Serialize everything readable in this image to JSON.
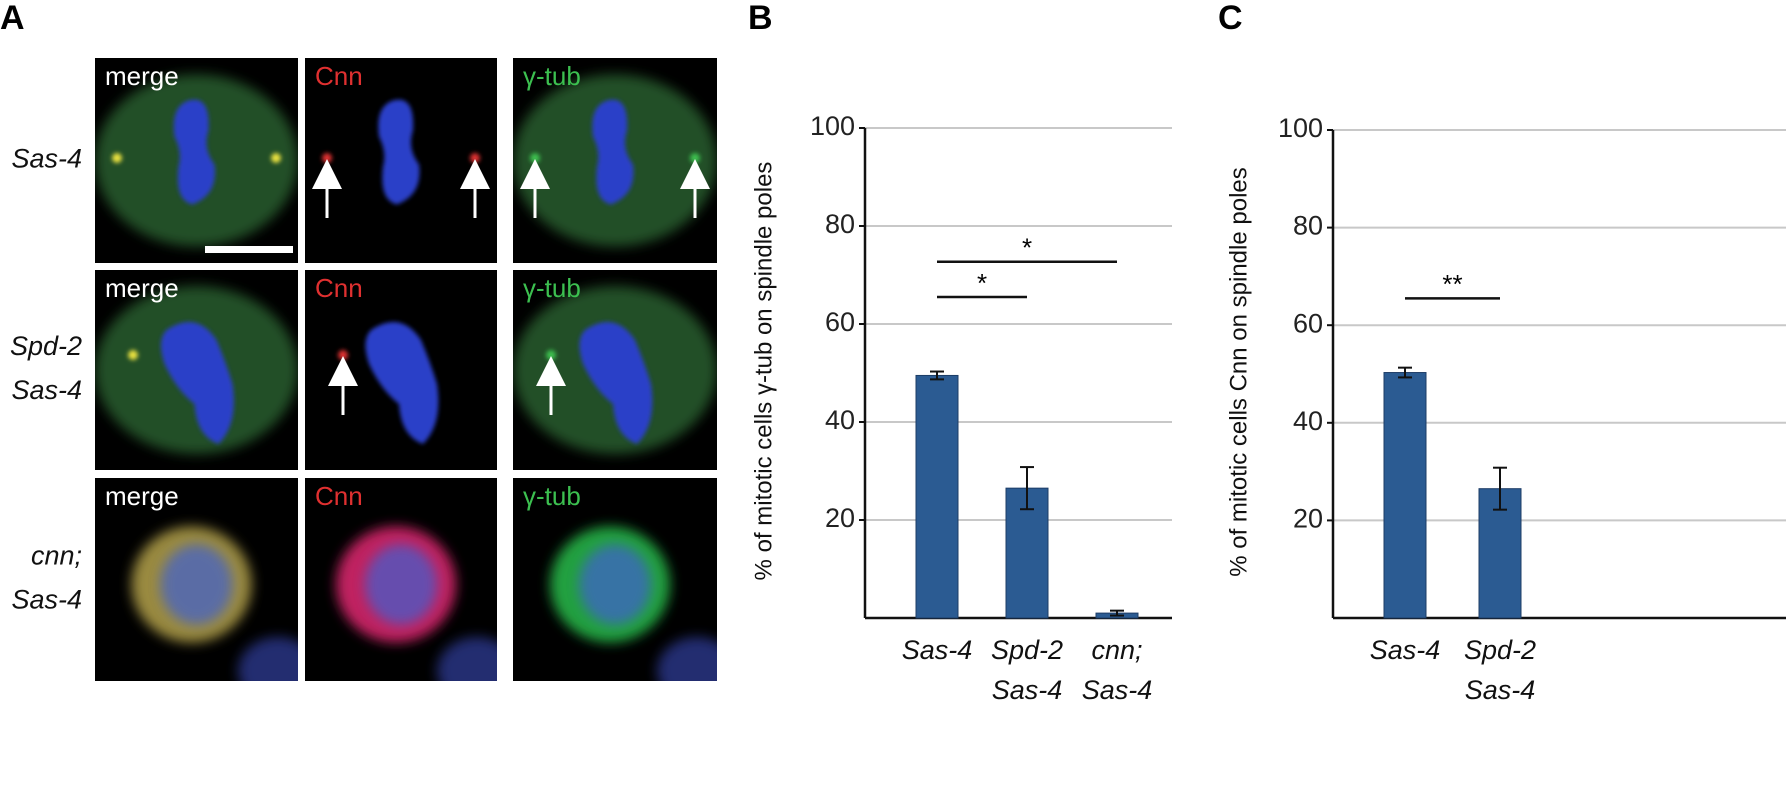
{
  "panel_labels": [
    "A",
    "B",
    "C"
  ],
  "image_panel": {
    "columns": [
      "merge",
      "Cnn",
      "γ-tub"
    ],
    "rows": [
      [
        "Sas-4"
      ],
      [
        "Spd-2",
        "Sas-4"
      ],
      [
        "cnn;",
        "Sas-4"
      ]
    ]
  },
  "chart_data": [
    {
      "type": "bar",
      "y_label": "% of mitotic cells γ-tub on spindle poles",
      "categories": [
        [
          "Sas-4"
        ],
        [
          "Spd-2",
          "Sas-4"
        ],
        [
          "cnn;",
          "Sas-4"
        ]
      ],
      "values": [
        49.5,
        26.5,
        1
      ],
      "errors": [
        0.8,
        4.3,
        0.5
      ],
      "color": "#2b5b92",
      "ylim": [
        0,
        100
      ],
      "yticks": [
        20,
        40,
        60,
        80,
        100
      ],
      "grid": true,
      "annotations": [
        {
          "text": "*",
          "from": 0,
          "to": 1,
          "y": 65.5
        },
        {
          "text": "*",
          "from": 0,
          "to": 2,
          "y": 72.7
        }
      ]
    },
    {
      "type": "bar",
      "y_label": "% of mitotic cells Cnn on spindle poles",
      "categories": [
        [
          "Sas-4"
        ],
        [
          "Spd-2",
          "Sas-4"
        ]
      ],
      "values": [
        50.3,
        26.5
      ],
      "errors": [
        1,
        4.3
      ],
      "color": "#2b5b92",
      "ylim": [
        0,
        100
      ],
      "yticks": [
        20,
        40,
        60,
        80,
        100
      ],
      "grid": true,
      "annotations": [
        {
          "text": "**",
          "from": 0,
          "to": 1,
          "y": 65.5
        }
      ]
    }
  ]
}
